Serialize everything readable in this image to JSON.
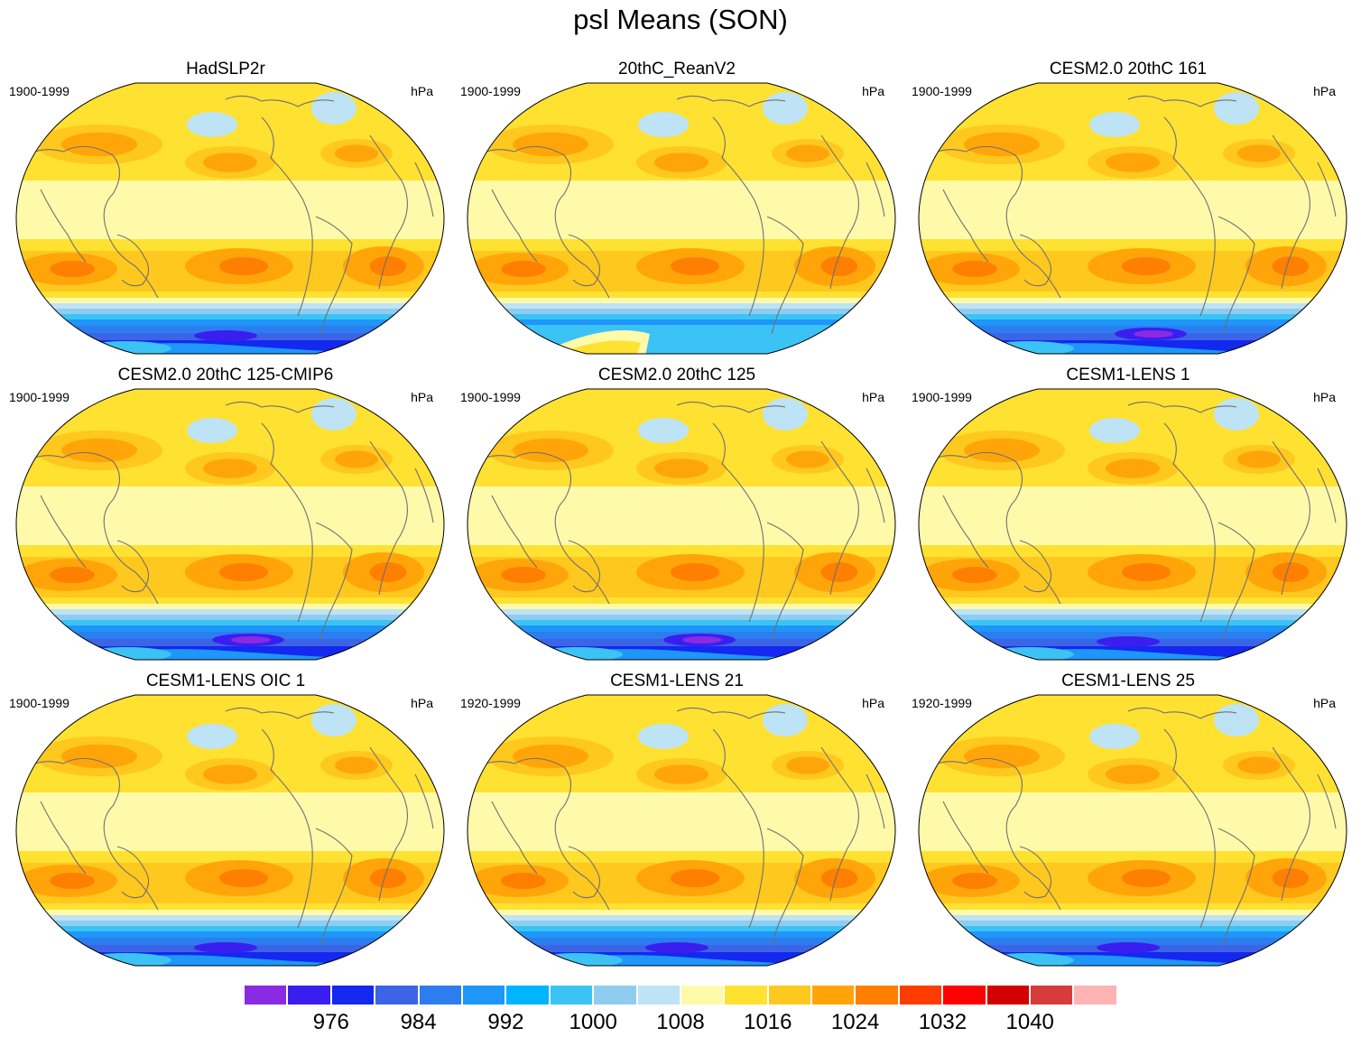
{
  "title": "psl Means (SON)",
  "units": "hPa",
  "panels": [
    {
      "title": "HadSLP2r",
      "period": "1900-1999",
      "antarctic": "mid"
    },
    {
      "title": "20thC_ReanV2",
      "period": "1900-1999",
      "antarctic": "rean"
    },
    {
      "title": "CESM2.0 20thC 161",
      "period": "1900-1999",
      "antarctic": "deep"
    },
    {
      "title": "CESM2.0 20thC 125-CMIP6",
      "period": "1900-1999",
      "antarctic": "deep"
    },
    {
      "title": "CESM2.0 20thC 125",
      "period": "1900-1999",
      "antarctic": "deep"
    },
    {
      "title": "CESM1-LENS 1",
      "period": "1900-1999",
      "antarctic": "mid"
    },
    {
      "title": "CESM1-LENS OIC 1",
      "period": "1900-1999",
      "antarctic": "mid"
    },
    {
      "title": "CESM1-LENS 21",
      "period": "1920-1999",
      "antarctic": "mid"
    },
    {
      "title": "CESM1-LENS 25",
      "period": "1920-1999",
      "antarctic": "mid"
    }
  ],
  "colorbar": {
    "colors": [
      "#8a2be2",
      "#3a1ef0",
      "#1428f0",
      "#3c64e6",
      "#2c7df0",
      "#1e96fa",
      "#00b4ff",
      "#3cc3f5",
      "#8fcdf0",
      "#bde3f5",
      "#fffaaa",
      "#ffe132",
      "#ffc81e",
      "#ffa50a",
      "#ff7f00",
      "#ff3c00",
      "#ff0000",
      "#d20000",
      "#d73c3c",
      "#ffb4b4"
    ],
    "labels": [
      "976",
      "984",
      "992",
      "1000",
      "1008",
      "1016",
      "1024",
      "1032",
      "1040"
    ]
  }
}
